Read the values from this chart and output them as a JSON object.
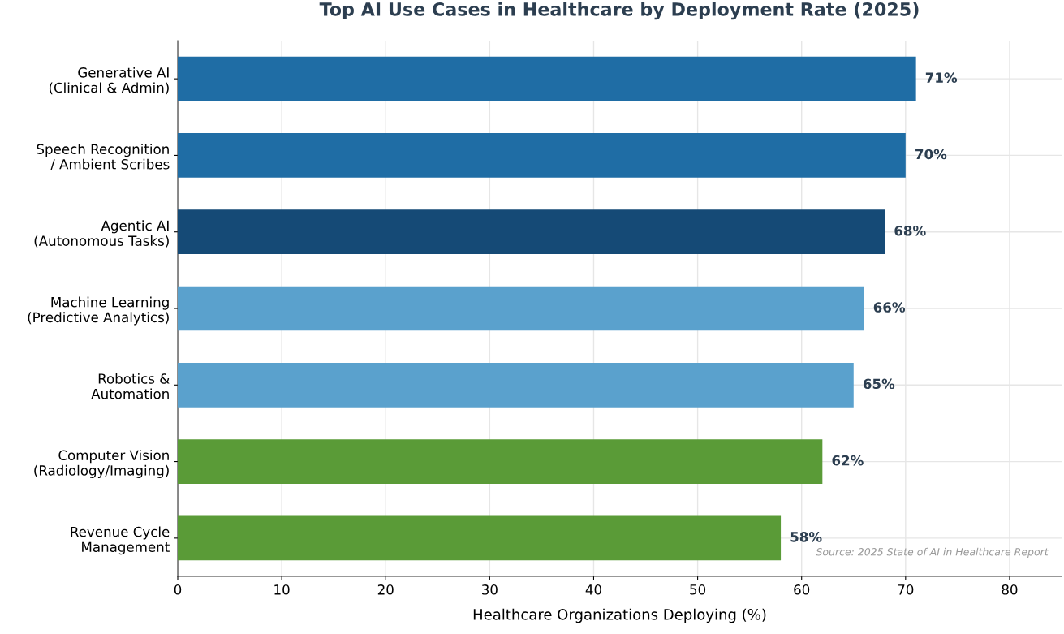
{
  "chart_data": {
    "type": "bar",
    "orientation": "horizontal",
    "title": "Top AI Use Cases in Healthcare by Deployment Rate (2025)",
    "xlabel": "Healthcare Organizations Deploying (%)",
    "categories": [
      "Generative AI\n(Clinical & Admin)",
      "Speech Recognition\n/ Ambient Scribes",
      "Agentic AI\n(Autonomous Tasks)",
      "Machine Learning\n(Predictive Analytics)",
      "Robotics &\nAutomation",
      "Computer Vision\n(Radiology/Imaging)",
      "Revenue Cycle\nManagement"
    ],
    "values": [
      71,
      70,
      68,
      66,
      65,
      62,
      58
    ],
    "colors": [
      "#1f6da5",
      "#1f6da5",
      "#154a76",
      "#5aa1cd",
      "#5aa1cd",
      "#5a9b37",
      "#5a9b37"
    ],
    "value_labels": [
      "71%",
      "70%",
      "68%",
      "66%",
      "65%",
      "62%",
      "58%"
    ],
    "xlim": [
      0,
      85
    ],
    "xticks": [
      0,
      10,
      20,
      30,
      40,
      50,
      60,
      70,
      80
    ],
    "grid": true,
    "annotations": [
      "Source: 2025 State of AI in Healthcare Report"
    ]
  }
}
